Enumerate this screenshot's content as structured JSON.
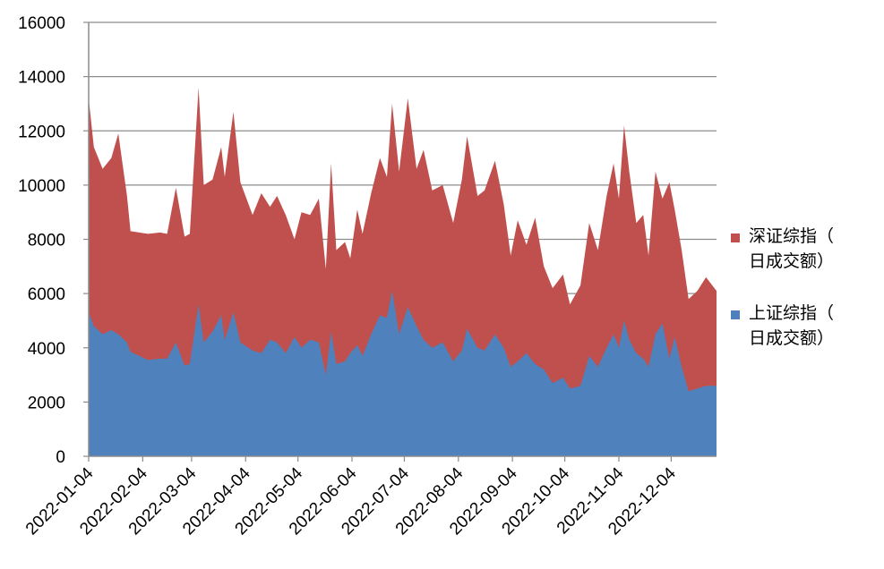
{
  "chart_data": {
    "type": "area",
    "stacked": true,
    "xlabel": "",
    "ylabel": "",
    "ylim": [
      0,
      16000
    ],
    "yticks": [
      0,
      2000,
      4000,
      6000,
      8000,
      10000,
      12000,
      14000,
      16000
    ],
    "xticks": [
      "2022-01-04",
      "2022-02-04",
      "2022-03-04",
      "2022-04-04",
      "2022-05-04",
      "2022-06-04",
      "2022-07-04",
      "2022-08-04",
      "2022-09-04",
      "2022-10-04",
      "2022-11-04",
      "2022-12-04"
    ],
    "xrange": [
      "2022-01-04",
      "2022-12-30"
    ],
    "grid": "horizontal",
    "legend": "right",
    "colors": {
      "sh": "#4f81bd",
      "sz": "#c0504d"
    },
    "series": [
      {
        "name": "上证综指（日成交额）",
        "key": "sh",
        "points": [
          [
            "2022-01-04",
            5300
          ],
          [
            "2022-01-07",
            4800
          ],
          [
            "2022-01-12",
            4500
          ],
          [
            "2022-01-17",
            4650
          ],
          [
            "2022-01-21",
            4500
          ],
          [
            "2022-01-26",
            4200
          ],
          [
            "2022-01-28",
            3850
          ],
          [
            "2022-02-07",
            3550
          ],
          [
            "2022-02-14",
            3600
          ],
          [
            "2022-02-18",
            3600
          ],
          [
            "2022-02-23",
            4200
          ],
          [
            "2022-02-28",
            3350
          ],
          [
            "2022-03-03",
            3400
          ],
          [
            "2022-03-08",
            5600
          ],
          [
            "2022-03-11",
            4200
          ],
          [
            "2022-03-16",
            4600
          ],
          [
            "2022-03-21",
            5200
          ],
          [
            "2022-03-23",
            4300
          ],
          [
            "2022-03-28",
            5300
          ],
          [
            "2022-04-01",
            4200
          ],
          [
            "2022-04-08",
            3900
          ],
          [
            "2022-04-13",
            3800
          ],
          [
            "2022-04-18",
            4300
          ],
          [
            "2022-04-22",
            4200
          ],
          [
            "2022-04-27",
            3800
          ],
          [
            "2022-05-02",
            4400
          ],
          [
            "2022-05-06",
            4000
          ],
          [
            "2022-05-11",
            4300
          ],
          [
            "2022-05-16",
            4200
          ],
          [
            "2022-05-20",
            3000
          ],
          [
            "2022-05-23",
            4600
          ],
          [
            "2022-05-26",
            3400
          ],
          [
            "2022-05-31",
            3500
          ],
          [
            "2022-06-03",
            3800
          ],
          [
            "2022-06-07",
            4100
          ],
          [
            "2022-06-10",
            3700
          ],
          [
            "2022-06-15",
            4500
          ],
          [
            "2022-06-20",
            5200
          ],
          [
            "2022-06-24",
            5100
          ],
          [
            "2022-06-27",
            6100
          ],
          [
            "2022-07-01",
            4500
          ],
          [
            "2022-07-06",
            5500
          ],
          [
            "2022-07-11",
            4800
          ],
          [
            "2022-07-15",
            4300
          ],
          [
            "2022-07-20",
            4000
          ],
          [
            "2022-07-26",
            4200
          ],
          [
            "2022-08-01",
            3500
          ],
          [
            "2022-08-06",
            3900
          ],
          [
            "2022-08-09",
            4700
          ],
          [
            "2022-08-15",
            4000
          ],
          [
            "2022-08-19",
            3900
          ],
          [
            "2022-08-25",
            4500
          ],
          [
            "2022-08-30",
            4000
          ],
          [
            "2022-09-03",
            3300
          ],
          [
            "2022-09-07",
            3500
          ],
          [
            "2022-09-12",
            3800
          ],
          [
            "2022-09-17",
            3400
          ],
          [
            "2022-09-22",
            3200
          ],
          [
            "2022-09-27",
            2700
          ],
          [
            "2022-10-03",
            2900
          ],
          [
            "2022-10-07",
            2500
          ],
          [
            "2022-10-13",
            2600
          ],
          [
            "2022-10-18",
            3700
          ],
          [
            "2022-10-23",
            3300
          ],
          [
            "2022-10-28",
            4000
          ],
          [
            "2022-11-01",
            4500
          ],
          [
            "2022-11-04",
            4000
          ],
          [
            "2022-11-07",
            5000
          ],
          [
            "2022-11-10",
            4300
          ],
          [
            "2022-11-14",
            3800
          ],
          [
            "2022-11-18",
            3600
          ],
          [
            "2022-11-21",
            3300
          ],
          [
            "2022-11-25",
            4500
          ],
          [
            "2022-11-29",
            4900
          ],
          [
            "2022-12-03",
            3600
          ],
          [
            "2022-12-06",
            4400
          ],
          [
            "2022-12-10",
            3300
          ],
          [
            "2022-12-14",
            2400
          ],
          [
            "2022-12-19",
            2500
          ],
          [
            "2022-12-24",
            2600
          ],
          [
            "2022-12-30",
            2600
          ]
        ]
      },
      {
        "name": "深证综指（日成交额）",
        "key": "sz",
        "points": [
          [
            "2022-01-04",
            13200
          ],
          [
            "2022-01-07",
            11400
          ],
          [
            "2022-01-12",
            10600
          ],
          [
            "2022-01-17",
            11000
          ],
          [
            "2022-01-21",
            11900
          ],
          [
            "2022-01-26",
            9600
          ],
          [
            "2022-01-28",
            8300
          ],
          [
            "2022-02-07",
            8200
          ],
          [
            "2022-02-14",
            8250
          ],
          [
            "2022-02-18",
            8200
          ],
          [
            "2022-02-23",
            9900
          ],
          [
            "2022-02-28",
            8100
          ],
          [
            "2022-03-03",
            8200
          ],
          [
            "2022-03-08",
            13600
          ],
          [
            "2022-03-11",
            10000
          ],
          [
            "2022-03-16",
            10200
          ],
          [
            "2022-03-21",
            11400
          ],
          [
            "2022-03-23",
            10300
          ],
          [
            "2022-03-28",
            12700
          ],
          [
            "2022-04-01",
            10100
          ],
          [
            "2022-04-08",
            8900
          ],
          [
            "2022-04-13",
            9700
          ],
          [
            "2022-04-18",
            9200
          ],
          [
            "2022-04-22",
            9600
          ],
          [
            "2022-04-27",
            8900
          ],
          [
            "2022-05-02",
            8000
          ],
          [
            "2022-05-06",
            9000
          ],
          [
            "2022-05-11",
            8900
          ],
          [
            "2022-05-16",
            9500
          ],
          [
            "2022-05-20",
            6900
          ],
          [
            "2022-05-23",
            10800
          ],
          [
            "2022-05-26",
            7600
          ],
          [
            "2022-05-31",
            7900
          ],
          [
            "2022-06-03",
            7300
          ],
          [
            "2022-06-07",
            9100
          ],
          [
            "2022-06-10",
            8200
          ],
          [
            "2022-06-15",
            9700
          ],
          [
            "2022-06-20",
            11000
          ],
          [
            "2022-06-24",
            10300
          ],
          [
            "2022-06-27",
            13000
          ],
          [
            "2022-07-01",
            10500
          ],
          [
            "2022-07-06",
            13200
          ],
          [
            "2022-07-11",
            10600
          ],
          [
            "2022-07-15",
            11300
          ],
          [
            "2022-07-20",
            9800
          ],
          [
            "2022-07-26",
            10000
          ],
          [
            "2022-08-01",
            8600
          ],
          [
            "2022-08-06",
            10200
          ],
          [
            "2022-08-09",
            11800
          ],
          [
            "2022-08-15",
            9600
          ],
          [
            "2022-08-19",
            9800
          ],
          [
            "2022-08-25",
            10900
          ],
          [
            "2022-08-30",
            9300
          ],
          [
            "2022-09-03",
            7400
          ],
          [
            "2022-09-07",
            8700
          ],
          [
            "2022-09-12",
            7800
          ],
          [
            "2022-09-17",
            8800
          ],
          [
            "2022-09-22",
            7000
          ],
          [
            "2022-09-27",
            6200
          ],
          [
            "2022-10-03",
            6700
          ],
          [
            "2022-10-07",
            5600
          ],
          [
            "2022-10-13",
            6300
          ],
          [
            "2022-10-18",
            8600
          ],
          [
            "2022-10-23",
            7600
          ],
          [
            "2022-10-28",
            9600
          ],
          [
            "2022-11-01",
            10800
          ],
          [
            "2022-11-04",
            9500
          ],
          [
            "2022-11-07",
            12200
          ],
          [
            "2022-11-10",
            10500
          ],
          [
            "2022-11-14",
            8600
          ],
          [
            "2022-11-18",
            8900
          ],
          [
            "2022-11-21",
            7400
          ],
          [
            "2022-11-25",
            10500
          ],
          [
            "2022-11-29",
            9500
          ],
          [
            "2022-12-03",
            10100
          ],
          [
            "2022-12-06",
            9100
          ],
          [
            "2022-12-10",
            7600
          ],
          [
            "2022-12-14",
            5800
          ],
          [
            "2022-12-19",
            6100
          ],
          [
            "2022-12-24",
            6600
          ],
          [
            "2022-12-30",
            6100
          ]
        ]
      }
    ]
  }
}
